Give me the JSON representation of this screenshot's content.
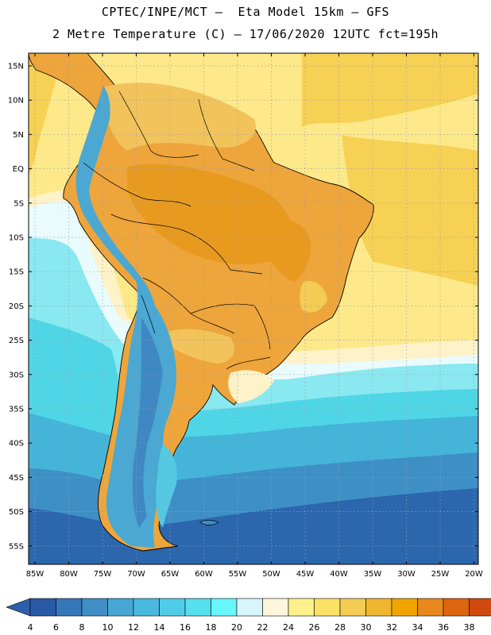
{
  "header": {
    "title_line1": "CPTEC/INPE/MCT –  Eta Model 15km – GFS",
    "title_line2": "2 Metre Temperature (C) – 17/06/2020 12UTC fct=195h"
  },
  "map": {
    "region": "South America",
    "lat_labels": [
      "15N",
      "10N",
      "5N",
      "EQ",
      "5S",
      "10S",
      "15S",
      "20S",
      "25S",
      "30S",
      "35S",
      "40S",
      "45S",
      "50S",
      "55S"
    ],
    "lon_labels": [
      "85W",
      "80W",
      "75W",
      "70W",
      "65W",
      "60W",
      "55W",
      "50W",
      "45W",
      "40W",
      "35W",
      "30W",
      "25W",
      "20W"
    ],
    "ocean_bands": [
      {
        "color": "#fde98a",
        "value": "24-26"
      },
      {
        "color": "#f7d154",
        "value": "26-28"
      },
      {
        "color": "#fef2c8",
        "value": "20-22"
      },
      {
        "color": "#e9fbfd",
        "value": "18-20"
      },
      {
        "color": "#8ae8f0",
        "value": "16-18"
      },
      {
        "color": "#4fd6e6",
        "value": "14-16"
      },
      {
        "color": "#44b4d8",
        "value": "10-12"
      },
      {
        "color": "#3e8fc6",
        "value": "6-8"
      },
      {
        "color": "#2c66ad",
        "value": "4-6"
      }
    ],
    "land_colors": {
      "warm_inland": "#eea53b",
      "hot_core": "#e89a1f",
      "mild": "#f2c35b",
      "andes_cold": "#4aa8d2",
      "patagonia": "#3f88c3"
    }
  },
  "colorbar": {
    "labels": [
      "4",
      "6",
      "8",
      "10",
      "12",
      "14",
      "16",
      "18",
      "20",
      "22",
      "24",
      "26",
      "28",
      "30",
      "32",
      "34",
      "36",
      "38"
    ],
    "colors": [
      "#2a5aa6",
      "#3577b8",
      "#3f8fc6",
      "#47a6d4",
      "#4ab9de",
      "#4fcde8",
      "#55e0ef",
      "#66f7fb",
      "#d6f6fb",
      "#fef6dc",
      "#fef18c",
      "#fbe166",
      "#f4cb53",
      "#efb72f",
      "#f1a400",
      "#e9881c",
      "#de6510",
      "#cf4a0c",
      "#b83a04"
    ],
    "arrow_low_color": "#2e5eaa",
    "arrow_high_color": "#c24808"
  }
}
